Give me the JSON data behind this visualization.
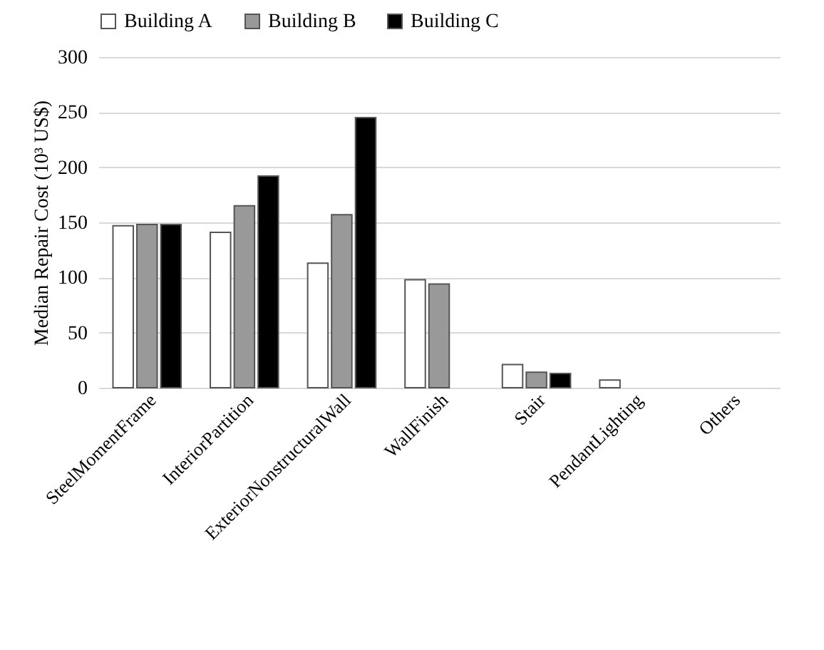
{
  "chart_data": {
    "type": "bar",
    "ylabel": "Median Repair Cost (10³ US$)",
    "categories": [
      "SteelMomentFrame",
      "InteriorPartition",
      "ExteriorNonstructuralWall",
      "WallFinish",
      "Stair",
      "PendantLighting",
      "Others"
    ],
    "series": [
      {
        "name": "Building A",
        "color": "#ffffff",
        "values": [
          147,
          141,
          113,
          98,
          21,
          7,
          null
        ]
      },
      {
        "name": "Building B",
        "color": "#999999",
        "values": [
          148,
          165,
          157,
          94,
          14,
          null,
          null
        ]
      },
      {
        "name": "Building C",
        "color": "#000000",
        "values": [
          148,
          192,
          245,
          null,
          13,
          null,
          null
        ]
      }
    ],
    "ylim": [
      0,
      300
    ],
    "yticks": [
      0,
      50,
      100,
      150,
      200,
      250,
      300
    ],
    "grid": "y",
    "legend": "top"
  }
}
